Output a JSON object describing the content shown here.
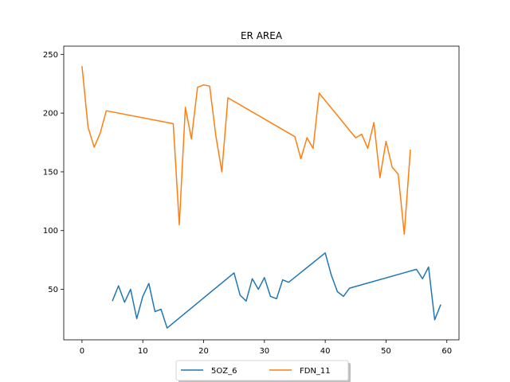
{
  "chart_data": {
    "type": "line",
    "title": "ER AREA",
    "xlabel": "",
    "ylabel": "",
    "xlim": [
      -3,
      62
    ],
    "ylim": [
      7,
      257
    ],
    "xticks": [
      0,
      10,
      20,
      30,
      40,
      50,
      60
    ],
    "yticks": [
      50,
      100,
      150,
      200,
      250
    ],
    "grid": false,
    "legend_position": "bottom-center",
    "series": [
      {
        "name": "5OZ_6",
        "color": "#1f77b4",
        "x": [
          5,
          6,
          7,
          8,
          9,
          10,
          11,
          12,
          13,
          14,
          25,
          26,
          27,
          28,
          29,
          30,
          31,
          32,
          33,
          34,
          40,
          41,
          42,
          43,
          44,
          55,
          56,
          57,
          58,
          59
        ],
        "y": [
          40,
          53,
          39,
          50,
          25,
          44,
          55,
          31,
          33,
          17,
          64,
          45,
          40,
          59,
          50,
          60,
          44,
          42,
          58,
          56,
          81,
          62,
          48,
          44,
          51,
          67,
          59,
          69,
          24,
          37
        ]
      },
      {
        "name": "FDN_11",
        "color": "#ff7f0e",
        "x": [
          0,
          1,
          2,
          3,
          4,
          15,
          16,
          17,
          18,
          19,
          20,
          21,
          22,
          23,
          24,
          35,
          36,
          37,
          38,
          39,
          45,
          46,
          47,
          48,
          49,
          50,
          51,
          52,
          53,
          54
        ],
        "y": [
          240,
          188,
          171,
          183,
          202,
          191,
          105,
          205,
          178,
          222,
          224,
          223,
          181,
          150,
          213,
          180,
          161,
          179,
          170,
          217,
          179,
          182,
          170,
          192,
          145,
          176,
          154,
          148,
          97,
          169
        ]
      }
    ]
  }
}
